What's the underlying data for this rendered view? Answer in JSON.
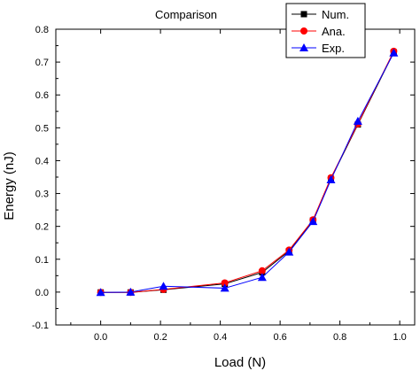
{
  "chart_data": {
    "type": "line",
    "title": "Comparison",
    "xlabel": "Load (N)",
    "ylabel": "Energy (nJ)",
    "xlim": [
      -0.15,
      1.05
    ],
    "ylim": [
      -0.1,
      0.8
    ],
    "xticks": [
      "0.0",
      "0.2",
      "0.4",
      "0.6",
      "0.8",
      "1.0"
    ],
    "xtick_values": [
      0.0,
      0.2,
      0.4,
      0.6,
      0.8,
      1.0
    ],
    "yticks": [
      "-0.1",
      "0.0",
      "0.1",
      "0.2",
      "0.3",
      "0.4",
      "0.5",
      "0.6",
      "0.7",
      "0.8"
    ],
    "ytick_values": [
      -0.1,
      0.0,
      0.1,
      0.2,
      0.3,
      0.4,
      0.5,
      0.6,
      0.7,
      0.8
    ],
    "grid": false,
    "legend": "top-right",
    "series": [
      {
        "name": "Num.",
        "color": "#000000",
        "marker": "square",
        "points": [
          [
            0.0,
            -0.001
          ],
          [
            0.1,
            -0.001
          ],
          [
            0.21,
            0.007
          ],
          [
            0.415,
            0.025
          ],
          [
            0.54,
            0.06
          ],
          [
            0.63,
            0.125
          ],
          [
            0.71,
            0.218
          ],
          [
            0.77,
            0.345
          ],
          [
            0.86,
            0.51
          ],
          [
            0.98,
            0.73
          ]
        ]
      },
      {
        "name": "Ana.",
        "color": "#ff0000",
        "marker": "circle",
        "points": [
          [
            0.0,
            -0.001
          ],
          [
            0.1,
            -0.001
          ],
          [
            0.21,
            0.008
          ],
          [
            0.415,
            0.028
          ],
          [
            0.54,
            0.065
          ],
          [
            0.63,
            0.128
          ],
          [
            0.71,
            0.22
          ],
          [
            0.77,
            0.348
          ],
          [
            0.86,
            0.512
          ],
          [
            0.98,
            0.733
          ]
        ]
      },
      {
        "name": "Exp.",
        "color": "#0000ff",
        "marker": "triangle",
        "points": [
          [
            0.0,
            -0.001
          ],
          [
            0.1,
            0.0
          ],
          [
            0.21,
            0.018
          ],
          [
            0.415,
            0.012
          ],
          [
            0.54,
            0.045
          ],
          [
            0.63,
            0.122
          ],
          [
            0.71,
            0.215
          ],
          [
            0.77,
            0.342
          ],
          [
            0.86,
            0.52
          ],
          [
            0.98,
            0.728
          ]
        ]
      }
    ]
  }
}
